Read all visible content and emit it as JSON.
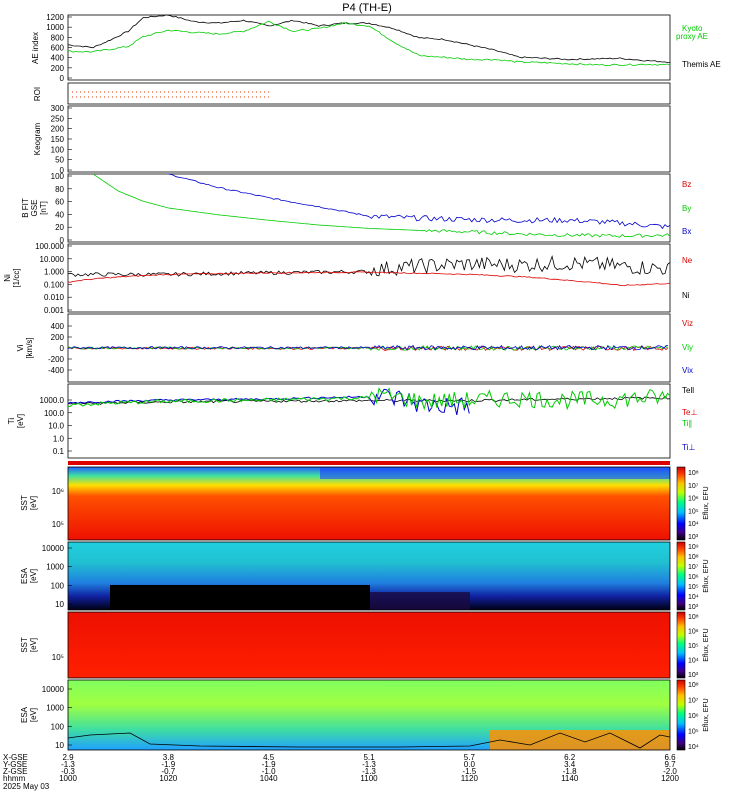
{
  "title": "P4 (TH-E)",
  "colors": {
    "black": "#000000",
    "green": "#00cc00",
    "red": "#dd0000",
    "blue": "#0000cc"
  },
  "panels": {
    "ae": {
      "ylabel": "AE index",
      "ticks": [
        "1200",
        "1000",
        "800",
        "600",
        "400",
        "200",
        "0"
      ],
      "legend_kyoto": "Kyoto",
      "legend_proxy": "proxy AE",
      "legend_themis": "Themis AE"
    },
    "roi": {
      "ylabel": "ROI"
    },
    "keogram": {
      "ylabel": "Keogram",
      "ticks": [
        "300",
        "250",
        "200",
        "150",
        "100",
        "50",
        "0"
      ]
    },
    "bfield": {
      "ylabel_1": "B FIT",
      "ylabel_2": "GSE",
      "ylabel_3": "[nT]",
      "ticks": [
        "100",
        "80",
        "60",
        "40",
        "20",
        "0"
      ],
      "legend": [
        "Bz",
        "By",
        "Bx"
      ]
    },
    "density": {
      "ylabel_1": "Ni",
      "ylabel_2": "[1/cc]",
      "ticks": [
        "100.000",
        "10.000",
        "1.000",
        "0.100",
        "0.010",
        "0.001"
      ],
      "legend": [
        "Ne",
        "Ni"
      ]
    },
    "velocity": {
      "ylabel_1": "Vi",
      "ylabel_2": "[km/s]",
      "ticks": [
        "400",
        "200",
        "0",
        "-200",
        "-400"
      ],
      "legend": [
        "Viz",
        "Viy",
        "Vix"
      ]
    },
    "temperature": {
      "ylabel_1": "Ti",
      "ylabel_2": "[eV]",
      "ticks": [
        "1000.0",
        "100.0",
        "10.0",
        "1.0",
        "0.1"
      ],
      "legend": [
        "Tell",
        "Te⊥",
        "Ti∥",
        "Ti⊥"
      ]
    },
    "sst_e": {
      "ylabel_1": "SST",
      "ylabel_2": "[eV]",
      "ticks": [
        "10⁶",
        "10⁵"
      ],
      "cb_label": "Eflux, EFU",
      "cb_ticks": [
        "10⁸",
        "10⁷",
        "10⁶",
        "10⁵",
        "10⁴",
        "10³"
      ]
    },
    "esa_e": {
      "ylabel_1": "ESA",
      "ylabel_2": "[eV]",
      "ticks": [
        "10000",
        "1000",
        "100",
        "10"
      ],
      "cb_label": "Eflux, EFU",
      "cb_ticks": [
        "10⁹",
        "10⁸",
        "10⁷",
        "10⁶",
        "10⁵",
        "10⁴",
        "10³"
      ]
    },
    "sst_i": {
      "ylabel_1": "SST",
      "ylabel_2": "[eV]",
      "ticks": [
        "10⁵"
      ],
      "cb_label": "Eflux, EFU",
      "cb_ticks": [
        "10⁸",
        "10⁶",
        "10⁵",
        "10⁴",
        "10³"
      ]
    },
    "esa_i": {
      "ylabel_1": "ESA",
      "ylabel_2": "[eV]",
      "ticks": [
        "10000",
        "1000",
        "100",
        "10"
      ],
      "cb_label": "Eflux, EFU",
      "cb_ticks": [
        "10⁸",
        "10⁷",
        "10⁶",
        "10⁵",
        "10⁴"
      ]
    }
  },
  "xaxis": {
    "row_labels": [
      "X-GSE",
      "Y-GSE",
      "Z-GSE",
      "hhmm",
      "2025 May 03"
    ],
    "columns": [
      {
        "x": "2.9",
        "y": "-1.3",
        "z": "-0.3",
        "t": "1000"
      },
      {
        "x": "3.8",
        "y": "-1.9",
        "z": "-0.7",
        "t": "1020"
      },
      {
        "x": "4.5",
        "y": "-1.9",
        "z": "-1.0",
        "t": "1040"
      },
      {
        "x": "5.1",
        "y": "-1.3",
        "z": "-1.3",
        "t": "1100"
      },
      {
        "x": "5.7",
        "y": "0.0",
        "z": "-1.5",
        "t": "1120"
      },
      {
        "x": "6.2",
        "y": "3.4",
        "z": "-1.8",
        "t": "1140"
      },
      {
        "x": "6.6",
        "y": "9.7",
        "z": "-2.0",
        "t": "1200"
      }
    ]
  },
  "chart_data": [
    {
      "type": "line",
      "title": "AE index",
      "x_unit": "min since 1000 UT",
      "ylim": [
        0,
        1200
      ],
      "series": [
        {
          "name": "Themis AE",
          "x": [
            0,
            5,
            8,
            12,
            15,
            20,
            25,
            30,
            35,
            40,
            45,
            50,
            55,
            60,
            65,
            70,
            75,
            80,
            85,
            90,
            95,
            100,
            105,
            110,
            115,
            120
          ],
          "values": [
            650,
            600,
            720,
            900,
            1150,
            1200,
            1080,
            1050,
            1100,
            1000,
            1100,
            1000,
            1050,
            1050,
            950,
            780,
            750,
            650,
            550,
            420,
            400,
            380,
            390,
            400,
            360,
            330
          ]
        },
        {
          "name": "Kyoto proxy AE",
          "x": [
            0,
            5,
            8,
            12,
            15,
            20,
            25,
            30,
            35,
            40,
            45,
            50,
            55,
            60,
            65,
            70,
            75,
            80,
            85,
            90,
            95,
            100,
            105,
            110,
            115,
            120
          ],
          "values": [
            530,
            520,
            560,
            620,
            800,
            920,
            880,
            850,
            900,
            1080,
            900,
            950,
            1050,
            1000,
            700,
            450,
            420,
            380,
            380,
            330,
            320,
            300,
            280,
            280,
            290,
            280
          ]
        }
      ]
    },
    {
      "type": "line",
      "title": "B FIT GSE",
      "ylim": [
        0,
        100
      ],
      "series": [
        {
          "name": "Bx",
          "x": [
            20,
            30,
            40,
            50,
            60,
            70,
            80,
            90,
            100,
            110,
            120
          ],
          "values": [
            100,
            80,
            65,
            52,
            38,
            35,
            33,
            32,
            32,
            28,
            22
          ]
        },
        {
          "name": "By",
          "x": [
            5,
            10,
            15,
            20,
            30,
            40,
            50,
            60,
            70,
            80,
            90,
            100,
            110,
            120
          ],
          "values": [
            100,
            75,
            60,
            50,
            40,
            32,
            25,
            20,
            17,
            15,
            12,
            10,
            9,
            10
          ]
        }
      ]
    },
    {
      "type": "line",
      "title": "Ni",
      "ylim": [
        0.001,
        100
      ],
      "yscale": "log",
      "series": [
        {
          "name": "Ni",
          "x": [
            0,
            20,
            40,
            60,
            70,
            80,
            90,
            100,
            110,
            120
          ],
          "values": [
            0.6,
            0.6,
            0.8,
            1.0,
            2.0,
            3.0,
            2.5,
            3.5,
            2.0,
            1.2
          ]
        },
        {
          "name": "Ne",
          "x": [
            0,
            20,
            40,
            60,
            80,
            90,
            100,
            110,
            120
          ],
          "values": [
            0.15,
            0.6,
            0.8,
            0.9,
            0.6,
            0.4,
            0.2,
            0.08,
            0.12
          ]
        }
      ]
    },
    {
      "type": "line",
      "title": "Ti",
      "ylim": [
        0.1,
        1000
      ],
      "yscale": "log",
      "series": [
        {
          "name": "Ti∥",
          "x": [
            0,
            20,
            40,
            60,
            70,
            80,
            90,
            100,
            110,
            120
          ],
          "values": [
            400,
            800,
            1000,
            1500,
            400,
            500,
            700,
            500,
            600,
            900
          ]
        },
        {
          "name": "Ti⊥",
          "x": [
            0,
            20,
            40,
            60,
            70,
            80
          ],
          "values": [
            600,
            1000,
            1200,
            1800,
            300,
            200
          ]
        },
        {
          "name": "Tell",
          "x": [
            0,
            20,
            40,
            60,
            80,
            100,
            120
          ],
          "values": [
            500,
            700,
            800,
            900,
            900,
            1200,
            1500
          ]
        }
      ]
    }
  ]
}
